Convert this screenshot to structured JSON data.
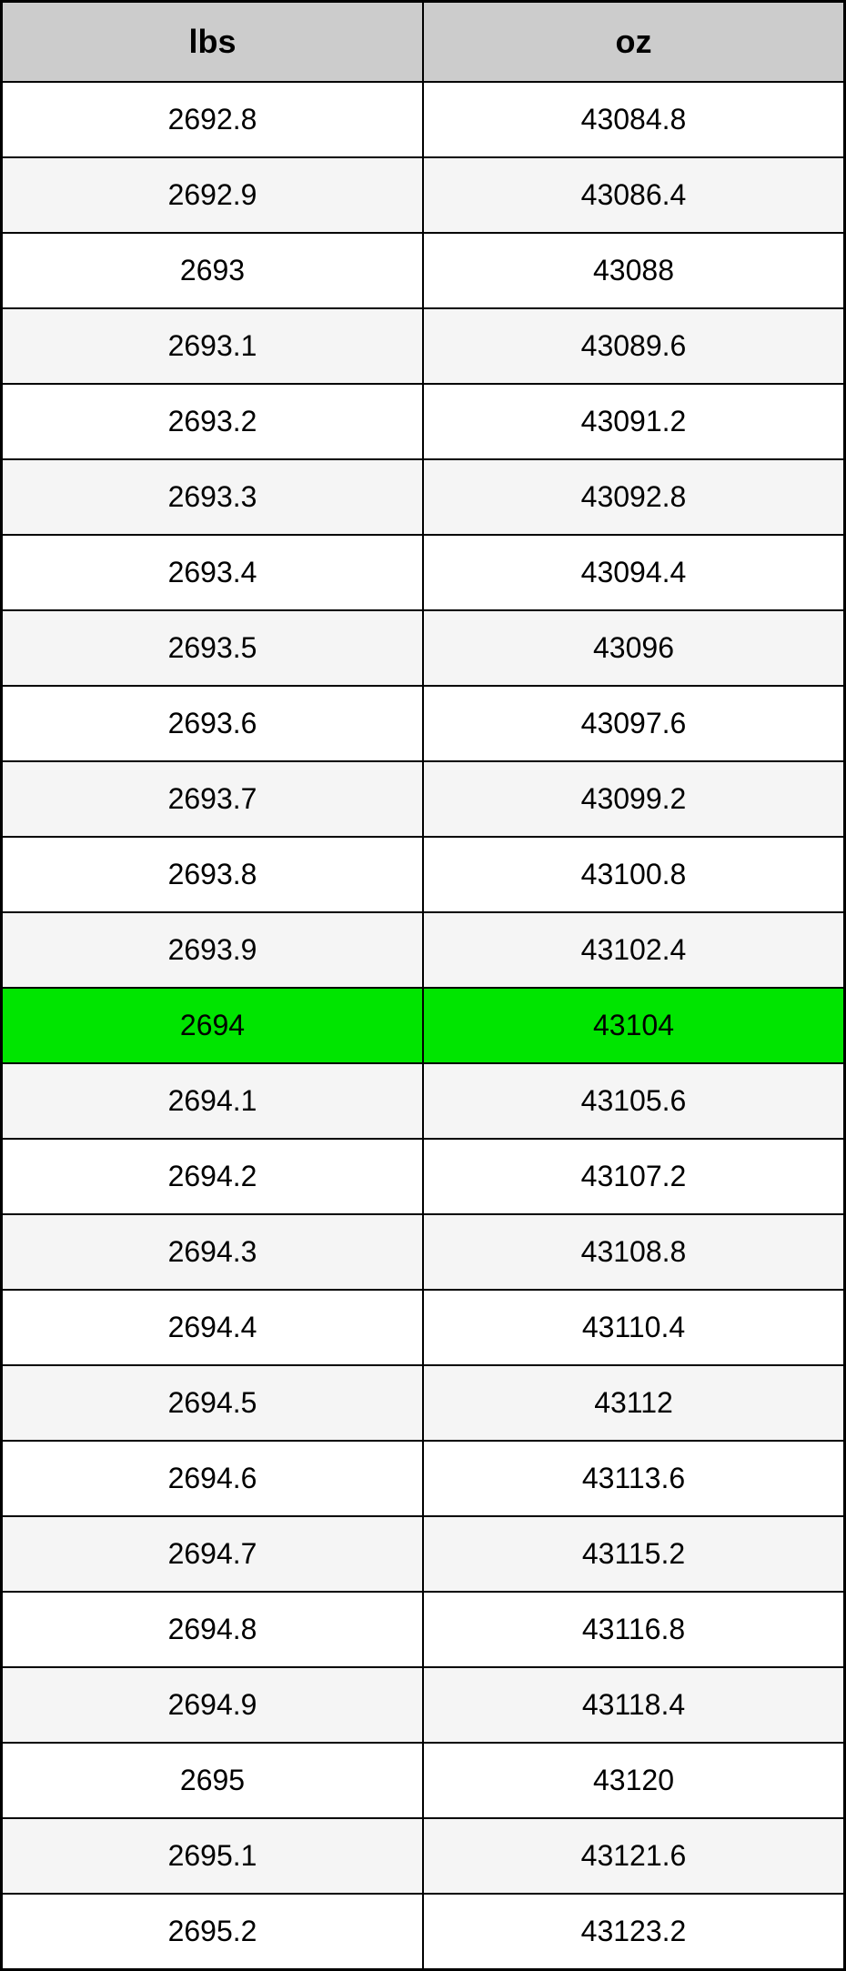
{
  "table": {
    "type": "table",
    "columns": [
      "lbs",
      "oz"
    ],
    "header_bg": "#cccccc",
    "header_fontsize": 36,
    "header_fontweight": "bold",
    "cell_fontsize": 32,
    "border_color": "#000000",
    "row_even_bg": "#ffffff",
    "row_odd_bg": "#f5f5f5",
    "highlight_bg": "#00e500",
    "highlight_row_index": 12,
    "rows": [
      [
        "2692.8",
        "43084.8"
      ],
      [
        "2692.9",
        "43086.4"
      ],
      [
        "2693",
        "43088"
      ],
      [
        "2693.1",
        "43089.6"
      ],
      [
        "2693.2",
        "43091.2"
      ],
      [
        "2693.3",
        "43092.8"
      ],
      [
        "2693.4",
        "43094.4"
      ],
      [
        "2693.5",
        "43096"
      ],
      [
        "2693.6",
        "43097.6"
      ],
      [
        "2693.7",
        "43099.2"
      ],
      [
        "2693.8",
        "43100.8"
      ],
      [
        "2693.9",
        "43102.4"
      ],
      [
        "2694",
        "43104"
      ],
      [
        "2694.1",
        "43105.6"
      ],
      [
        "2694.2",
        "43107.2"
      ],
      [
        "2694.3",
        "43108.8"
      ],
      [
        "2694.4",
        "43110.4"
      ],
      [
        "2694.5",
        "43112"
      ],
      [
        "2694.6",
        "43113.6"
      ],
      [
        "2694.7",
        "43115.2"
      ],
      [
        "2694.8",
        "43116.8"
      ],
      [
        "2694.9",
        "43118.4"
      ],
      [
        "2695",
        "43120"
      ],
      [
        "2695.1",
        "43121.6"
      ],
      [
        "2695.2",
        "43123.2"
      ]
    ]
  }
}
